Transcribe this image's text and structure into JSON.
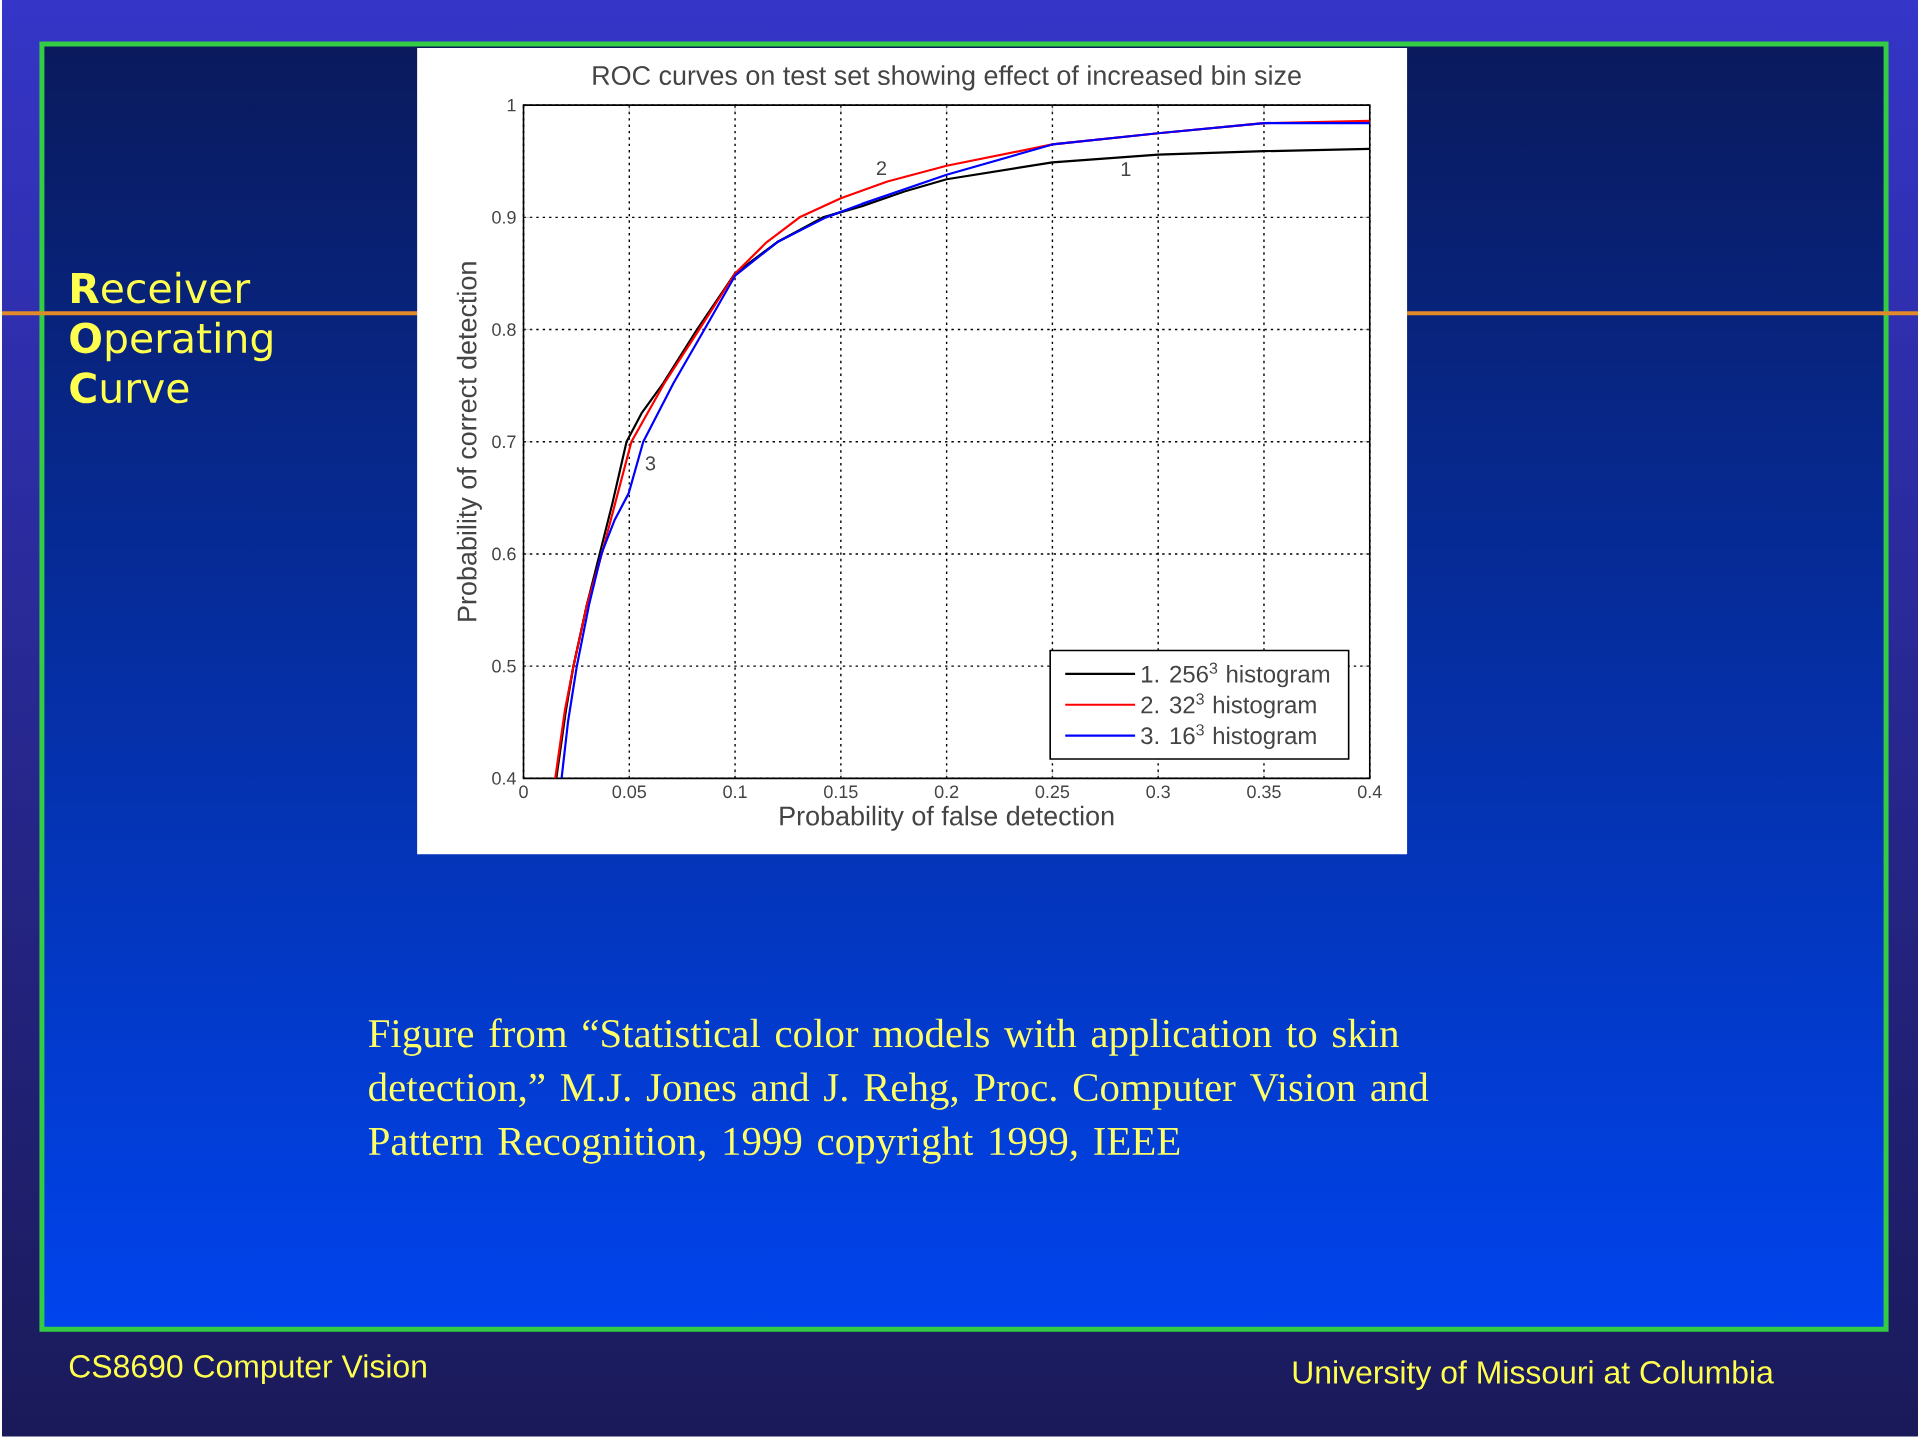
{
  "chart_data": {
    "type": "line",
    "title": "ROC curves on test set showing effect of increased bin size",
    "xlabel": "Probability of false detection",
    "ylabel": "Probability of correct detection",
    "xlim": [
      0,
      0.4
    ],
    "ylim": [
      0.4,
      1
    ],
    "xticks": [
      0,
      0.05,
      0.1,
      0.15,
      0.2,
      0.25,
      0.3,
      0.35,
      0.4
    ],
    "yticks": [
      0.4,
      0.5,
      0.6,
      0.7,
      0.8,
      0.9,
      1
    ],
    "grid": true,
    "legend": "bottom right",
    "marker": "none",
    "line_style": "solid",
    "series": [
      {
        "name": "1. 256$^{3}$ histogram",
        "color": "#000000",
        "x": [
          0.0155,
          0.02,
          0.0236,
          0.03,
          0.036,
          0.042,
          0.0487,
          0.056,
          0.066,
          0.082,
          0.1,
          0.12,
          0.1415,
          0.16,
          0.18,
          0.2,
          0.25,
          0.3,
          0.35,
          0.4
        ],
        "values": [
          0.4,
          0.46,
          0.5,
          0.555,
          0.6,
          0.645,
          0.7,
          0.726,
          0.752,
          0.8,
          0.85,
          0.878,
          0.9,
          0.91,
          0.923,
          0.934,
          0.949,
          0.956,
          0.959,
          0.961
        ]
      },
      {
        "name": "2. 32$^{3}$ histogram",
        "color": "#ff0000",
        "x": [
          0.015,
          0.0195,
          0.0236,
          0.03,
          0.037,
          0.044,
          0.051,
          0.0665,
          0.083,
          0.1,
          0.115,
          0.1305,
          0.15,
          0.172,
          0.2,
          0.25,
          0.3,
          0.35,
          0.4
        ],
        "values": [
          0.4,
          0.46,
          0.5,
          0.555,
          0.6,
          0.65,
          0.7,
          0.752,
          0.8,
          0.85,
          0.878,
          0.9,
          0.917,
          0.932,
          0.946,
          0.965,
          0.975,
          0.984,
          0.986
        ]
      },
      {
        "name": "3. 16$^{3}$ histogram",
        "color": "#0000ff",
        "x": [
          0.018,
          0.021,
          0.0252,
          0.031,
          0.0368,
          0.043,
          0.0497,
          0.0566,
          0.0708,
          0.0855,
          0.1,
          0.12,
          0.143,
          0.16,
          0.2,
          0.25,
          0.3,
          0.35,
          0.4
        ],
        "values": [
          0.4,
          0.45,
          0.5,
          0.555,
          0.6,
          0.63,
          0.654,
          0.7,
          0.752,
          0.8,
          0.848,
          0.878,
          0.9,
          0.912,
          0.938,
          0.965,
          0.975,
          0.984,
          0.984
        ]
      }
    ],
    "annotations": [
      {
        "text": "1",
        "x": 0.28,
        "y": 0.953
      },
      {
        "text": "2",
        "x": 0.172,
        "y": 0.932
      },
      {
        "text": "3",
        "x": 0.0553,
        "y": 0.691
      },
      "**R**eceiver **O**perating **C**urve",
      "Figure from “Statistical color models with application to skin detection,” M.J. Jones and J. Rehg, Proc. Computer Vision and Pattern Recognition, 1999 copyright 1999, IEEE",
      "CS8690 Computer Vision",
      "University of Missouri at Columbia"
    ]
  }
}
